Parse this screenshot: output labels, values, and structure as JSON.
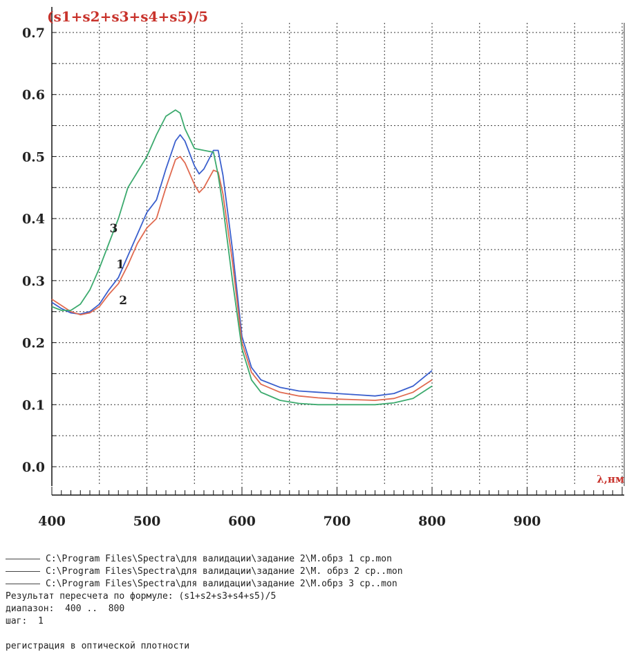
{
  "chart_data": {
    "type": "line",
    "title": "(s1+s2+s3+s4+s5)/5",
    "xlabel": "λ,нм",
    "ylabel": "",
    "xlim": [
      400,
      900
    ],
    "ylim": [
      0.0,
      0.7
    ],
    "x_ticks": [
      "400",
      "500",
      "600",
      "700",
      "800",
      "900"
    ],
    "y_ticks": [
      "0.0",
      "0.1",
      "0.2",
      "0.3",
      "0.4",
      "0.5",
      "0.6",
      "0.7"
    ],
    "grid": true,
    "series": [
      {
        "name": "1",
        "color": "#3a5fcd",
        "x": [
          400,
          410,
          420,
          430,
          440,
          450,
          460,
          470,
          480,
          490,
          500,
          510,
          520,
          530,
          535,
          540,
          550,
          555,
          560,
          570,
          575,
          580,
          590,
          600,
          610,
          620,
          640,
          660,
          680,
          700,
          720,
          740,
          760,
          780,
          800
        ],
        "y": [
          0.265,
          0.255,
          0.248,
          0.246,
          0.25,
          0.262,
          0.285,
          0.305,
          0.34,
          0.375,
          0.41,
          0.43,
          0.48,
          0.525,
          0.535,
          0.525,
          0.485,
          0.472,
          0.48,
          0.51,
          0.51,
          0.47,
          0.35,
          0.21,
          0.16,
          0.14,
          0.128,
          0.122,
          0.12,
          0.118,
          0.116,
          0.114,
          0.118,
          0.13,
          0.155
        ]
      },
      {
        "name": "2",
        "color": "#e06a50",
        "x": [
          400,
          410,
          420,
          430,
          440,
          450,
          460,
          470,
          480,
          490,
          500,
          510,
          520,
          530,
          535,
          540,
          550,
          555,
          560,
          570,
          575,
          580,
          590,
          600,
          610,
          620,
          640,
          660,
          680,
          700,
          720,
          740,
          760,
          780,
          800
        ],
        "y": [
          0.27,
          0.26,
          0.25,
          0.245,
          0.248,
          0.258,
          0.278,
          0.295,
          0.325,
          0.36,
          0.385,
          0.4,
          0.45,
          0.495,
          0.5,
          0.49,
          0.455,
          0.442,
          0.45,
          0.478,
          0.475,
          0.44,
          0.33,
          0.2,
          0.152,
          0.133,
          0.12,
          0.114,
          0.111,
          0.109,
          0.108,
          0.107,
          0.11,
          0.12,
          0.14
        ]
      },
      {
        "name": "3",
        "color": "#3caa6e",
        "x": [
          400,
          410,
          420,
          430,
          440,
          450,
          460,
          470,
          480,
          490,
          500,
          510,
          520,
          530,
          535,
          540,
          550,
          560,
          570,
          575,
          580,
          590,
          600,
          610,
          620,
          640,
          660,
          680,
          700,
          720,
          740,
          760,
          780,
          800
        ],
        "y": [
          0.258,
          0.252,
          0.252,
          0.262,
          0.285,
          0.32,
          0.36,
          0.4,
          0.45,
          0.475,
          0.5,
          0.535,
          0.565,
          0.575,
          0.57,
          0.545,
          0.513,
          0.51,
          0.507,
          0.47,
          0.42,
          0.3,
          0.19,
          0.14,
          0.12,
          0.107,
          0.102,
          0.1,
          0.1,
          0.1,
          0.1,
          0.103,
          0.11,
          0.13
        ]
      }
    ],
    "annotations": [
      {
        "text": "3",
        "x": 465,
        "y": 0.378
      },
      {
        "text": "1",
        "x": 472,
        "y": 0.32
      },
      {
        "text": "2",
        "x": 475,
        "y": 0.262
      }
    ]
  },
  "legend": {
    "files": [
      "C:\\Program Files\\Spectra\\для валидации\\задание 2\\М.обрз 1 ср.mon",
      "C:\\Program Files\\Spectra\\для валидации\\задание 2\\М. обрз 2 ср..mon",
      "C:\\Program Files\\Spectra\\для валидации\\задание 2\\М.обрз 3 ср..mon"
    ],
    "formula_line": "Результат пересчета по формуле: (s1+s2+s3+s4+s5)/5",
    "range_line": "диапазон:  400 ..  800",
    "step_line": "шаг:  1",
    "registration_line": "регистрация в оптической плотности"
  }
}
